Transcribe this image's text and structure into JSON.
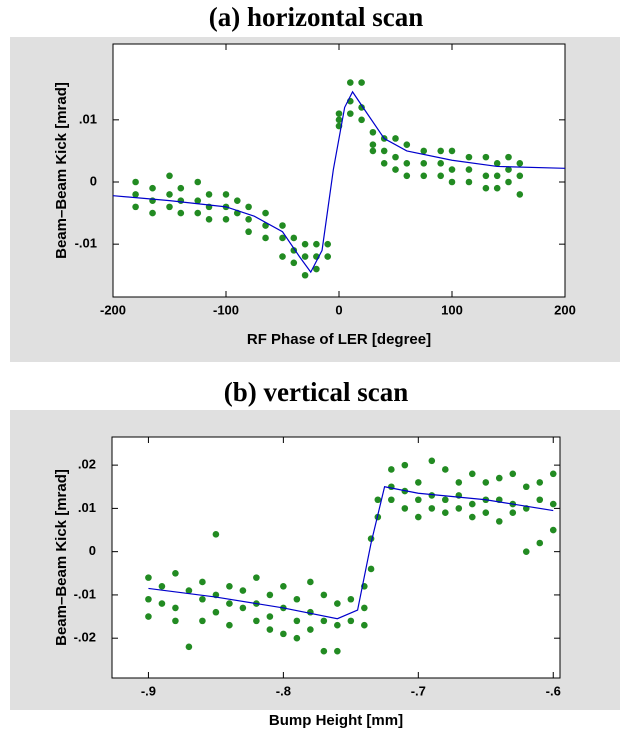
{
  "chart_data": [
    {
      "type": "scatter",
      "title": "(a) horizontal scan",
      "xlabel": "RF Phase of LER [degree]",
      "ylabel": "Beam–Beam Kick [mrad]",
      "xlim": [
        -200,
        200
      ],
      "ylim": [
        -0.0185,
        0.0222
      ],
      "xticks": [
        -200,
        -100,
        0,
        100,
        200
      ],
      "yticks": [
        {
          "value": -0.01,
          "label": "-.01"
        },
        0,
        {
          "value": 0.01,
          "label": ".01"
        }
      ],
      "series": [
        {
          "color": "#228b22",
          "x": [
            -180,
            -180,
            -180,
            -165,
            -165,
            -165,
            -150,
            -150,
            -150,
            -140,
            -140,
            -140,
            -125,
            -125,
            -125,
            -115,
            -115,
            -115,
            -100,
            -100,
            -100,
            -90,
            -90,
            -80,
            -80,
            -80,
            -65,
            -65,
            -65,
            -50,
            -50,
            -50,
            -40,
            -40,
            -40,
            -30,
            -30,
            -30,
            -20,
            -20,
            -20,
            -10,
            -10,
            0,
            0,
            0,
            10,
            10,
            10,
            20,
            20,
            20,
            30,
            30,
            30,
            40,
            40,
            40,
            50,
            50,
            50,
            60,
            60,
            60,
            75,
            75,
            75,
            90,
            90,
            90,
            100,
            100,
            100,
            115,
            115,
            115,
            130,
            130,
            130,
            140,
            140,
            140,
            150,
            150,
            150,
            160,
            160,
            160
          ],
          "values": [
            0.0,
            -0.002,
            -0.004,
            -0.001,
            -0.003,
            -0.005,
            0.001,
            -0.002,
            -0.004,
            -0.001,
            -0.003,
            -0.005,
            0.0,
            -0.003,
            -0.005,
            -0.002,
            -0.004,
            -0.006,
            -0.002,
            -0.004,
            -0.006,
            -0.003,
            -0.005,
            -0.004,
            -0.006,
            -0.008,
            -0.005,
            -0.007,
            -0.009,
            -0.007,
            -0.009,
            -0.012,
            -0.009,
            -0.011,
            -0.013,
            -0.01,
            -0.012,
            -0.015,
            -0.01,
            -0.012,
            -0.014,
            -0.01,
            -0.012,
            0.01,
            0.011,
            0.009,
            0.016,
            0.013,
            0.011,
            0.016,
            0.012,
            0.01,
            0.008,
            0.006,
            0.005,
            0.007,
            0.005,
            0.003,
            0.007,
            0.004,
            0.002,
            0.006,
            0.003,
            0.001,
            0.005,
            0.003,
            0.001,
            0.005,
            0.003,
            0.001,
            0.005,
            0.002,
            0.0,
            0.004,
            0.002,
            0.0,
            0.004,
            0.001,
            -0.001,
            0.003,
            0.001,
            -0.001,
            0.004,
            0.002,
            0.0,
            0.003,
            0.001,
            -0.002
          ]
        },
        {
          "type": "line",
          "color": "#0000cc",
          "x": [
            -200,
            -150,
            -100,
            -75,
            -50,
            -35,
            -25,
            -15,
            -5,
            5,
            12,
            25,
            40,
            60,
            100,
            140,
            200
          ],
          "values": [
            -0.0022,
            -0.003,
            -0.004,
            -0.0055,
            -0.008,
            -0.012,
            -0.0145,
            -0.011,
            0.002,
            0.012,
            0.0145,
            0.011,
            0.007,
            0.005,
            0.0035,
            0.0025,
            0.0022
          ]
        }
      ]
    },
    {
      "type": "scatter",
      "title": "(b) vertical scan",
      "xlabel": "Bump Height [mm]",
      "ylabel": "Beam–Beam Kick [mrad]",
      "xlim": [
        -0.927,
        -0.595
      ],
      "ylim": [
        -0.0292,
        0.0265
      ],
      "xticks": [
        {
          "value": -0.9,
          "label": "-.9"
        },
        {
          "value": -0.8,
          "label": "-.8"
        },
        {
          "value": -0.7,
          "label": "-.7"
        },
        {
          "value": -0.6,
          "label": "-.6"
        }
      ],
      "yticks": [
        {
          "value": -0.02,
          "label": "-.02"
        },
        {
          "value": -0.01,
          "label": "-.01"
        },
        0,
        {
          "value": 0.01,
          "label": ".01"
        },
        {
          "value": 0.02,
          "label": ".02"
        }
      ],
      "series": [
        {
          "color": "#228b22",
          "x": [
            -0.9,
            -0.9,
            -0.9,
            -0.89,
            -0.89,
            -0.88,
            -0.88,
            -0.88,
            -0.87,
            -0.87,
            -0.86,
            -0.86,
            -0.86,
            -0.85,
            -0.85,
            -0.85,
            -0.84,
            -0.84,
            -0.84,
            -0.83,
            -0.83,
            -0.82,
            -0.82,
            -0.82,
            -0.81,
            -0.81,
            -0.81,
            -0.8,
            -0.8,
            -0.8,
            -0.79,
            -0.79,
            -0.79,
            -0.78,
            -0.78,
            -0.78,
            -0.77,
            -0.77,
            -0.77,
            -0.76,
            -0.76,
            -0.76,
            -0.75,
            -0.75,
            -0.74,
            -0.74,
            -0.74,
            -0.735,
            -0.735,
            -0.73,
            -0.73,
            -0.72,
            -0.72,
            -0.72,
            -0.71,
            -0.71,
            -0.71,
            -0.7,
            -0.7,
            -0.7,
            -0.69,
            -0.69,
            -0.69,
            -0.68,
            -0.68,
            -0.68,
            -0.67,
            -0.67,
            -0.67,
            -0.66,
            -0.66,
            -0.66,
            -0.65,
            -0.65,
            -0.65,
            -0.64,
            -0.64,
            -0.64,
            -0.63,
            -0.63,
            -0.63,
            -0.62,
            -0.62,
            -0.62,
            -0.61,
            -0.61,
            -0.61,
            -0.6,
            -0.6,
            -0.6
          ],
          "values": [
            -0.006,
            -0.011,
            -0.015,
            -0.008,
            -0.012,
            -0.005,
            -0.013,
            -0.016,
            -0.009,
            -0.022,
            -0.007,
            -0.011,
            -0.016,
            0.004,
            -0.01,
            -0.014,
            -0.008,
            -0.012,
            -0.017,
            -0.009,
            -0.013,
            -0.006,
            -0.012,
            -0.016,
            -0.01,
            -0.015,
            -0.018,
            -0.008,
            -0.013,
            -0.019,
            -0.011,
            -0.016,
            -0.02,
            -0.007,
            -0.014,
            -0.018,
            -0.01,
            -0.016,
            -0.023,
            -0.012,
            -0.017,
            -0.023,
            -0.011,
            -0.016,
            -0.008,
            -0.013,
            -0.017,
            -0.004,
            0.003,
            0.008,
            0.012,
            0.019,
            0.015,
            0.012,
            0.02,
            0.014,
            0.01,
            0.016,
            0.012,
            0.008,
            0.021,
            0.013,
            0.01,
            0.019,
            0.012,
            0.009,
            0.016,
            0.013,
            0.01,
            0.018,
            0.011,
            0.008,
            0.016,
            0.012,
            0.009,
            0.017,
            0.012,
            0.007,
            0.018,
            0.011,
            0.009,
            0.015,
            0.01,
            0.0,
            0.016,
            0.012,
            0.002,
            0.018,
            0.011,
            0.005
          ]
        },
        {
          "type": "line",
          "color": "#0000cc",
          "x": [
            -0.9,
            -0.85,
            -0.8,
            -0.76,
            -0.745,
            -0.735,
            -0.725,
            -0.7,
            -0.65,
            -0.6
          ],
          "values": [
            -0.0085,
            -0.0105,
            -0.013,
            -0.0155,
            -0.0135,
            0.002,
            0.015,
            0.0135,
            0.012,
            0.0095
          ]
        }
      ]
    }
  ]
}
